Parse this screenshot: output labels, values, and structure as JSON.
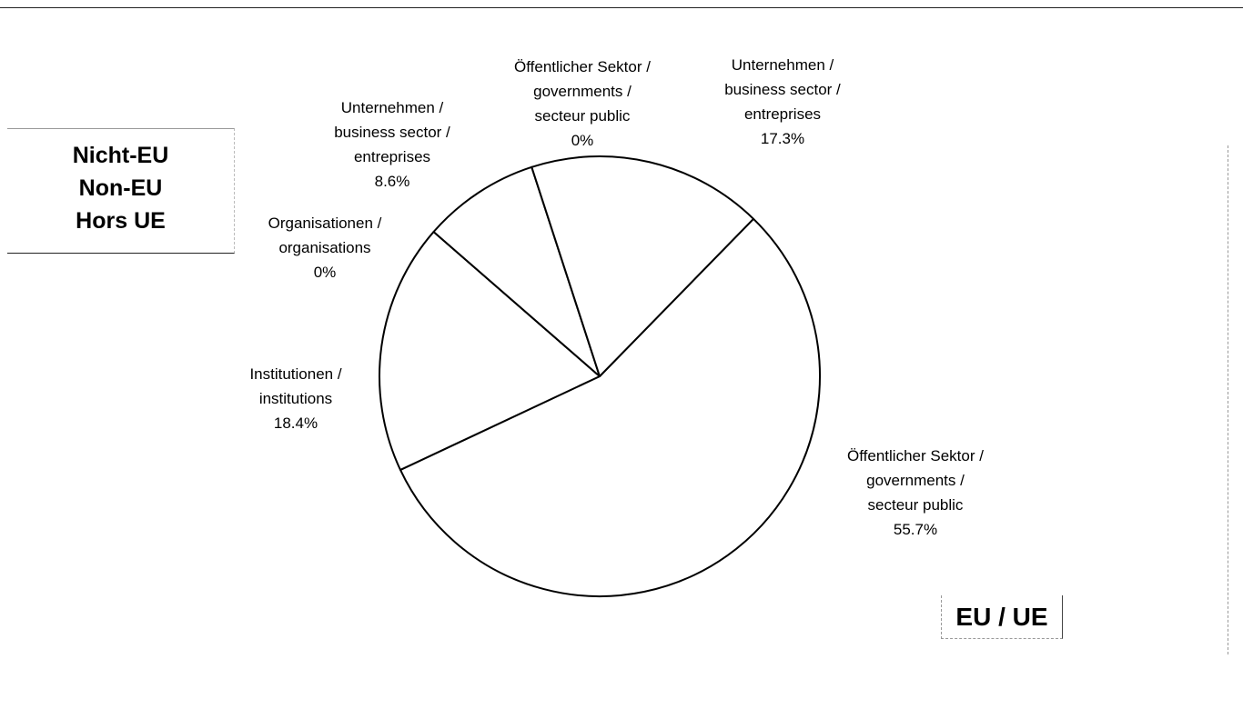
{
  "legend_boxes": {
    "non_eu": [
      "Nicht-EU",
      "Non-EU",
      "Hors UE"
    ],
    "eu": "EU / UE"
  },
  "chart_data": {
    "type": "pie",
    "title": "",
    "slices": [
      {
        "name": [
          "Öffentlicher Sektor /",
          "governments /",
          "secteur public"
        ],
        "value": 55.7,
        "value_label": "55.7%"
      },
      {
        "name": [
          "Institutionen /",
          "institutions"
        ],
        "value": 18.4,
        "value_label": "18.4%"
      },
      {
        "name": [
          "Organisationen /",
          "organisations"
        ],
        "value": 0,
        "value_label": "0%"
      },
      {
        "name": [
          "Unternehmen /",
          "business sector /",
          "entreprises"
        ],
        "value": 8.6,
        "value_label": "8.6%"
      },
      {
        "name": [
          "Öffentlicher Sektor /",
          "governments /",
          "secteur public"
        ],
        "value": 0,
        "value_label": "0%"
      },
      {
        "name": [
          "Unternehmen /",
          "business sector /",
          "entreprises"
        ],
        "value": 17.3,
        "value_label": "17.3%"
      }
    ],
    "colors": {
      "fill": "#ffffff",
      "stroke": "#000000"
    }
  }
}
